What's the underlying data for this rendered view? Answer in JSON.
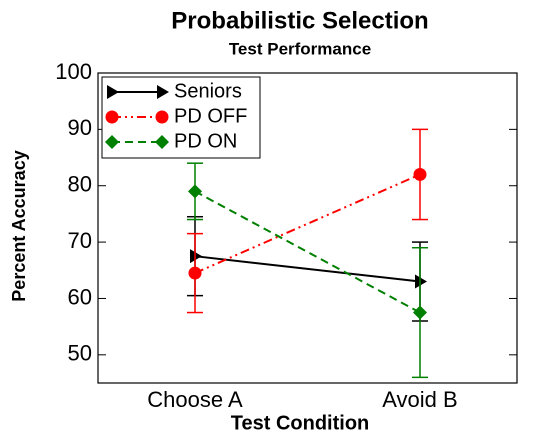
{
  "chart_data": {
    "type": "line",
    "title": "Probabilistic Selection",
    "subtitle": "Test Performance",
    "xlabel": "Test Condition",
    "ylabel": "Percent Accuracy",
    "categories": [
      "Choose A",
      "Avoid B"
    ],
    "series": [
      {
        "name": "Seniors",
        "color": "#000000",
        "marker": "triangle",
        "dash": "solid",
        "values": [
          67.5,
          63
        ],
        "errors": [
          7,
          7
        ]
      },
      {
        "name": "PD OFF",
        "color": "#ff0000",
        "marker": "circle",
        "dash": "dashdotdot",
        "values": [
          64.5,
          82
        ],
        "errors": [
          7,
          8
        ]
      },
      {
        "name": "PD ON",
        "color": "#008000",
        "marker": "diamond",
        "dash": "dashed",
        "values": [
          79,
          57.5
        ],
        "errors": [
          5,
          11.5
        ]
      }
    ],
    "ylim": [
      45,
      100
    ],
    "yticks": [
      50,
      60,
      70,
      80,
      90,
      100
    ],
    "legend": "upper left"
  }
}
